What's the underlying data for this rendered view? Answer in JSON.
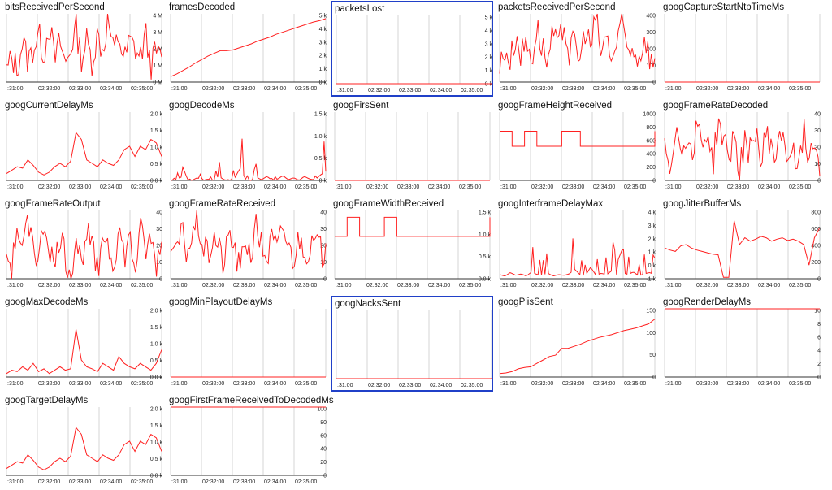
{
  "chart_data": [
    {
      "name": "bitsReceivedPerSecond",
      "type": "line",
      "selected": false,
      "pattern": "noisy",
      "seed": 1,
      "y": [
        0.15,
        0.35,
        0.2,
        0.6,
        0.3,
        0.5,
        0.7,
        0.4,
        0.9,
        0.3,
        0.6,
        0.25,
        0.5,
        0.8,
        0.35,
        0.6,
        0.3,
        0.7,
        0.45,
        0.95,
        0.4,
        0.7,
        0.3,
        0.6,
        0.5,
        0.35,
        0.7,
        0.25,
        0.45,
        0.3
      ],
      "yticks": [
        "4 M",
        "3 M",
        "2 M",
        "1 M",
        "0 M"
      ],
      "xticks": [
        ":31:00",
        "02:32:00",
        "02:33:00",
        "02:34:00",
        "02:35:00"
      ]
    },
    {
      "name": "framesDecoded",
      "type": "line",
      "selected": false,
      "pattern": "rising",
      "y": [
        0.08,
        0.12,
        0.17,
        0.22,
        0.28,
        0.33,
        0.38,
        0.42,
        0.46,
        0.46,
        0.47,
        0.5,
        0.53,
        0.56,
        0.6,
        0.63,
        0.66,
        0.7,
        0.73,
        0.76,
        0.79,
        0.82,
        0.85,
        0.88,
        0.9,
        0.93
      ],
      "yticks": [
        "5 k",
        "4 k",
        "3 k",
        "2 k",
        "1 k",
        "0 k"
      ],
      "xticks": [
        ":31:00",
        "02:32:00",
        "02:33:00",
        "02:34:00",
        "02:35:00"
      ]
    },
    {
      "name": "packetsLost",
      "type": "line",
      "selected": true,
      "pattern": "flat",
      "y": [
        0,
        0
      ],
      "yticks": [
        "5 k",
        "4 k",
        "3 k",
        "2 k",
        "1 k",
        "0 k"
      ],
      "xticks": [
        ":31:00",
        "02:32:00",
        "02:33:00",
        "02:34:00",
        "02:35:00"
      ]
    },
    {
      "name": "packetsReceivedPerSecond",
      "type": "line",
      "selected": false,
      "pattern": "noisy",
      "y": [
        0.2,
        0.5,
        0.3,
        0.7,
        0.4,
        0.6,
        0.35,
        0.8,
        0.5,
        0.3,
        0.7,
        0.45,
        0.9,
        0.4,
        0.6,
        0.3,
        0.8,
        0.5,
        0.95,
        0.4,
        0.7,
        0.3,
        0.6,
        0.85,
        0.4,
        0.55,
        0.3,
        0.7,
        0.4,
        0.2
      ],
      "yticks": [
        "400",
        "300",
        "200",
        "100",
        "0"
      ],
      "xticks": [
        ":31:00",
        "02:32:00",
        "02:33:00",
        "02:34:00",
        "02:35:00"
      ]
    },
    {
      "name": "googCaptureStartNtpTimeMs",
      "type": "line",
      "selected": false,
      "pattern": "flat",
      "y": [
        0,
        0
      ],
      "yticks": [],
      "xticks": [
        ":31:00",
        "02:32:00",
        "02:33:00",
        "02:34:00",
        "02:35:00"
      ]
    },
    {
      "name": "googCurrentDelayMs",
      "type": "line",
      "selected": false,
      "pattern": "delay",
      "y": [
        0.1,
        0.15,
        0.2,
        0.18,
        0.3,
        0.22,
        0.12,
        0.08,
        0.12,
        0.2,
        0.25,
        0.2,
        0.28,
        0.7,
        0.6,
        0.3,
        0.25,
        0.2,
        0.3,
        0.25,
        0.22,
        0.3,
        0.45,
        0.5,
        0.35,
        0.5,
        0.45,
        0.6,
        0.55,
        0.35
      ],
      "yticks": [
        "2.0 k",
        "1.5 k",
        "1.0 k",
        "0.5 k",
        "0.0 k"
      ],
      "xticks": [
        ":31:00",
        "02:32:00",
        "02:33:00",
        "02:34:00",
        "02:35:00"
      ]
    },
    {
      "name": "googDecodeMs",
      "type": "line",
      "selected": false,
      "pattern": "spiky",
      "y": [
        0,
        0.05,
        0.25,
        0.05,
        0,
        0.2,
        0,
        0.1,
        0,
        0.3,
        0.05,
        0,
        0.2,
        0.9,
        0.1,
        0,
        0.25,
        0.05,
        0.3,
        0,
        0.1,
        0.35,
        0.05,
        0.2,
        0,
        0.3,
        0.1,
        0.05,
        0.4,
        0.65
      ],
      "yticks": [
        "1.5 k",
        "1.0 k",
        "0.5 k",
        "0 k"
      ],
      "xticks": [
        ":31:00",
        "02:32:00",
        "02:33:00",
        "02:34:00",
        "02:35:00"
      ]
    },
    {
      "name": "googFirsSent",
      "type": "line",
      "selected": false,
      "pattern": "flat",
      "y": [
        0,
        0
      ],
      "yticks": [],
      "xticks": [
        ":31:00",
        "02:32:00",
        "02:33:00",
        "02:34:00",
        "02:35:00"
      ]
    },
    {
      "name": "googFrameHeightReceived",
      "type": "line",
      "selected": false,
      "pattern": "step",
      "y": [
        0.72,
        0.72,
        0.5,
        0.5,
        0.72,
        0.72,
        0.5,
        0.5,
        0.5,
        0.5,
        0.72,
        0.72,
        0.72,
        0.5,
        0.5,
        0.5,
        0.5,
        0.5,
        0.5,
        0.5,
        0.5,
        0.5,
        0.5,
        0.5,
        0.5,
        0.72
      ],
      "yticks": [
        "1000",
        "800",
        "600",
        "400",
        "200",
        "0"
      ],
      "xticks": [
        ":31:00",
        "02:32:00",
        "02:33:00",
        "02:34:00",
        "02:35:00"
      ]
    },
    {
      "name": "googFrameRateDecoded",
      "type": "line",
      "selected": false,
      "pattern": "noisy",
      "y": [
        0.6,
        0.2,
        0.8,
        0.4,
        0.7,
        0.3,
        0.9,
        0.5,
        0.75,
        0.2,
        0.85,
        0.6,
        0.3,
        0.7,
        0.1,
        0.6,
        0.4,
        0.8,
        0.2,
        0.7,
        0.5,
        0.3,
        0.8,
        0.25,
        0.6,
        0.1,
        0.7,
        0.4,
        0.6,
        0.2
      ],
      "yticks": [
        "40",
        "30",
        "20",
        "10",
        "0"
      ],
      "xticks": [
        ":31:00",
        "02:32:00",
        "02:33:00",
        "02:34:00",
        "02:35:00"
      ]
    },
    {
      "name": "googFrameRateOutput",
      "type": "line",
      "selected": false,
      "pattern": "noisy",
      "y": [
        0.4,
        0.1,
        0.8,
        0.3,
        0.9,
        0.6,
        0.2,
        0.85,
        0.5,
        0.1,
        0.7,
        0.3,
        0.05,
        0.6,
        0.2,
        0.8,
        0.4,
        0.1,
        0.7,
        0.5,
        0.2,
        0.75,
        0.3,
        0.6,
        0.1,
        0.7,
        0.4,
        0.55,
        0.2,
        0.5
      ],
      "yticks": [
        "40",
        "30",
        "20",
        "10",
        "0"
      ],
      "xticks": [
        ":31:00",
        "02:32:00",
        "02:33:00",
        "02:34:00",
        "02:35:00"
      ]
    },
    {
      "name": "googFrameRateReceived",
      "type": "line",
      "selected": false,
      "pattern": "noisy",
      "y": [
        0.5,
        0.3,
        0.7,
        0.4,
        0.6,
        0.85,
        0.5,
        0.3,
        0.65,
        0.45,
        0.2,
        0.7,
        0.4,
        0.1,
        0.6,
        0.35,
        0.75,
        0.5,
        0.3,
        0.6,
        0.4,
        0.8,
        0.45,
        0.3,
        0.6,
        0.5,
        0.35,
        0.55,
        0.4,
        0.3
      ],
      "yticks": [
        "40",
        "30",
        "20",
        "10",
        "0"
      ],
      "xticks": [
        ":31:00",
        "02:32:00",
        "02:33:00",
        "02:34:00",
        "02:35:00"
      ]
    },
    {
      "name": "googFrameWidthReceived",
      "type": "line",
      "selected": false,
      "pattern": "step",
      "y": [
        0.62,
        0.62,
        0.9,
        0.9,
        0.62,
        0.62,
        0.62,
        0.62,
        0.9,
        0.9,
        0.62,
        0.62,
        0.62,
        0.62,
        0.62,
        0.62,
        0.62,
        0.62,
        0.62,
        0.62,
        0.62,
        0.62,
        0.62,
        0.62,
        0.62,
        0.9
      ],
      "yticks": [
        "1.5 k",
        "1.0 k",
        "0.5 k",
        "0.0 k"
      ],
      "xticks": [
        ":31:00",
        "02:32:00",
        "02:33:00",
        "02:34:00",
        "02:35:00"
      ]
    },
    {
      "name": "googInterframeDelayMax",
      "type": "line",
      "selected": false,
      "pattern": "spiky",
      "y": [
        0.3,
        0.2,
        0.45,
        0.25,
        0.35,
        0.2,
        0.5,
        0.3,
        0.25,
        0.4,
        0.2,
        0.3,
        0.25,
        0.35,
        0.7,
        0.3,
        0.2,
        0.85,
        0.25,
        0.4,
        0.3,
        0.6,
        0.25,
        0.45,
        0.3,
        0.5,
        0.2,
        0.35,
        0.45,
        0.3
      ],
      "yticks": [
        "4 k",
        "3 k",
        "2 k",
        "1 k",
        "0 k",
        "-1 k"
      ],
      "xticks": [
        ":31:00",
        "02:32:00",
        "02:33:00",
        "02:34:00",
        "02:35:00"
      ]
    },
    {
      "name": "googJitterBufferMs",
      "type": "line",
      "selected": false,
      "pattern": "jitter",
      "y": [
        0.45,
        0.42,
        0.4,
        0.48,
        0.5,
        0.45,
        0.42,
        0.4,
        0.38,
        0.36,
        0.35,
        0.02,
        0.02,
        0.85,
        0.5,
        0.6,
        0.55,
        0.58,
        0.62,
        0.6,
        0.55,
        0.58,
        0.6,
        0.56,
        0.58,
        0.55,
        0.5,
        0.2,
        0.6,
        0.75
      ],
      "yticks": [
        "800",
        "600",
        "400",
        "200",
        "0"
      ],
      "xticks": [
        ":31:00",
        "02:32:00",
        "02:33:00",
        "02:34:00",
        "02:35:00"
      ]
    },
    {
      "name": "googMaxDecodeMs",
      "type": "line",
      "selected": false,
      "pattern": "delay",
      "y": [
        0.05,
        0.1,
        0.08,
        0.15,
        0.1,
        0.2,
        0.08,
        0.12,
        0.05,
        0.1,
        0.15,
        0.1,
        0.12,
        0.7,
        0.25,
        0.15,
        0.12,
        0.08,
        0.2,
        0.15,
        0.1,
        0.3,
        0.2,
        0.15,
        0.12,
        0.2,
        0.15,
        0.1,
        0.2,
        0.4
      ],
      "yticks": [
        "2.0 k",
        "1.5 k",
        "1.0 k",
        "0.5 k",
        "0.0 k"
      ],
      "xticks": [
        ":31:00",
        "02:32:00",
        "02:33:00",
        "02:34:00",
        "02:35:00"
      ]
    },
    {
      "name": "googMinPlayoutDelayMs",
      "type": "line",
      "selected": false,
      "pattern": "flat",
      "y": [
        0,
        0
      ],
      "yticks": [],
      "xticks": [
        ":31:00",
        "02:32:00",
        "02:33:00",
        "02:34:00",
        "02:35:00"
      ]
    },
    {
      "name": "googNacksSent",
      "type": "line",
      "selected": true,
      "pattern": "flat",
      "y": [
        0,
        0
      ],
      "yticks": [],
      "xticks": [
        ":31:00",
        "02:32:00",
        "02:33:00",
        "02:34:00",
        "02:35:00"
      ]
    },
    {
      "name": "googPlisSent",
      "type": "line",
      "selected": false,
      "pattern": "rising",
      "y": [
        0.05,
        0.06,
        0.08,
        0.12,
        0.14,
        0.15,
        0.2,
        0.25,
        0.3,
        0.32,
        0.42,
        0.42,
        0.45,
        0.48,
        0.52,
        0.55,
        0.58,
        0.6,
        0.62,
        0.65,
        0.68,
        0.7,
        0.72,
        0.75,
        0.78,
        0.85
      ],
      "yticks": [
        "150",
        "100",
        "50",
        "0"
      ],
      "xticks": [
        ":31:00",
        "02:32:00",
        "02:33:00",
        "02:34:00",
        "02:35:00"
      ]
    },
    {
      "name": "googRenderDelayMs",
      "type": "line",
      "selected": false,
      "pattern": "flat",
      "y": [
        1,
        1
      ],
      "yticks": [
        "10",
        "8",
        "6",
        "4",
        "2",
        "0"
      ],
      "xticks": [
        ":31:00",
        "02:32:00",
        "02:33:00",
        "02:34:00",
        "02:35:00"
      ]
    },
    {
      "name": "googTargetDelayMs",
      "type": "line",
      "selected": false,
      "pattern": "delay",
      "y": [
        0.1,
        0.15,
        0.2,
        0.18,
        0.3,
        0.22,
        0.12,
        0.08,
        0.12,
        0.2,
        0.25,
        0.2,
        0.28,
        0.7,
        0.6,
        0.3,
        0.25,
        0.2,
        0.3,
        0.25,
        0.22,
        0.3,
        0.45,
        0.5,
        0.35,
        0.5,
        0.45,
        0.6,
        0.55,
        0.35
      ],
      "yticks": [
        "2.0 k",
        "1.5 k",
        "1.0 k",
        "0.5 k",
        "0.0 k"
      ],
      "xticks": [
        ":31:00",
        "02:32:00",
        "02:33:00",
        "02:34:00",
        "02:35:00"
      ]
    },
    {
      "name": "googFirstFrameReceivedToDecodedMs",
      "type": "line",
      "selected": false,
      "pattern": "flat",
      "y": [
        1,
        1
      ],
      "yticks": [
        "100",
        "80",
        "60",
        "40",
        "20",
        "0"
      ],
      "xticks": [
        ":31:00",
        "02:32:00",
        "02:33:00",
        "02:34:00",
        "02:35:00"
      ]
    }
  ]
}
